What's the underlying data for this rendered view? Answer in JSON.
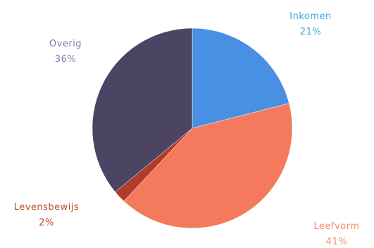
{
  "chart_data": {
    "type": "pie",
    "title": "",
    "slices": [
      {
        "label": "Inkomen",
        "value": 21,
        "value_label": "21%",
        "color": "#4a90e2",
        "label_color": "#39a7df"
      },
      {
        "label": "Leefvorm",
        "value": 41,
        "value_label": "41%",
        "color": "#f47a5e",
        "label_color": "#f08f6f"
      },
      {
        "label": "Levensbewijs",
        "value": 2,
        "value_label": "2%",
        "color": "#b23a2c",
        "label_color": "#c24d2e"
      },
      {
        "label": "Overig",
        "value": 36,
        "value_label": "36%",
        "color": "#4b4563",
        "label_color": "#8a72b5"
      }
    ],
    "start_angle": "top (12 o'clock)",
    "direction": "clockwise",
    "legend": "none (labels outside slices)"
  }
}
